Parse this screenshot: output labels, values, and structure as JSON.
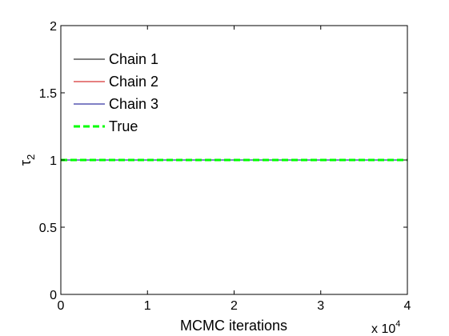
{
  "chart_data": {
    "type": "line",
    "xlabel": "MCMC iterations",
    "ylabel": "τ",
    "ylabel_subscript": "2",
    "xlim": [
      0,
      40000
    ],
    "ylim": [
      0,
      2
    ],
    "x_ticks": [
      0,
      10000,
      20000,
      30000,
      40000
    ],
    "x_tick_labels": [
      "0",
      "1",
      "2",
      "3",
      "4"
    ],
    "x_multiplier_base": "x 10",
    "x_multiplier_exp": "4",
    "y_ticks": [
      0,
      0.5,
      1,
      1.5,
      2
    ],
    "y_tick_labels": [
      "0",
      "0.5",
      "1",
      "1.5",
      "2"
    ],
    "grid": false,
    "legend_position": "top-left",
    "series": [
      {
        "name": "Chain 1",
        "color": "#000000",
        "dash": "solid",
        "x": [
          0,
          40000
        ],
        "y": [
          1,
          1
        ]
      },
      {
        "name": "Chain 2",
        "color": "#cc0000",
        "dash": "solid",
        "x": [
          0,
          40000
        ],
        "y": [
          1,
          1
        ]
      },
      {
        "name": "Chain 3",
        "color": "#00008b",
        "dash": "solid",
        "x": [
          0,
          40000
        ],
        "y": [
          1,
          1
        ]
      },
      {
        "name": "True",
        "color": "#00ff00",
        "dash": "dashed",
        "x": [
          0,
          40000
        ],
        "y": [
          1,
          1
        ]
      }
    ]
  }
}
